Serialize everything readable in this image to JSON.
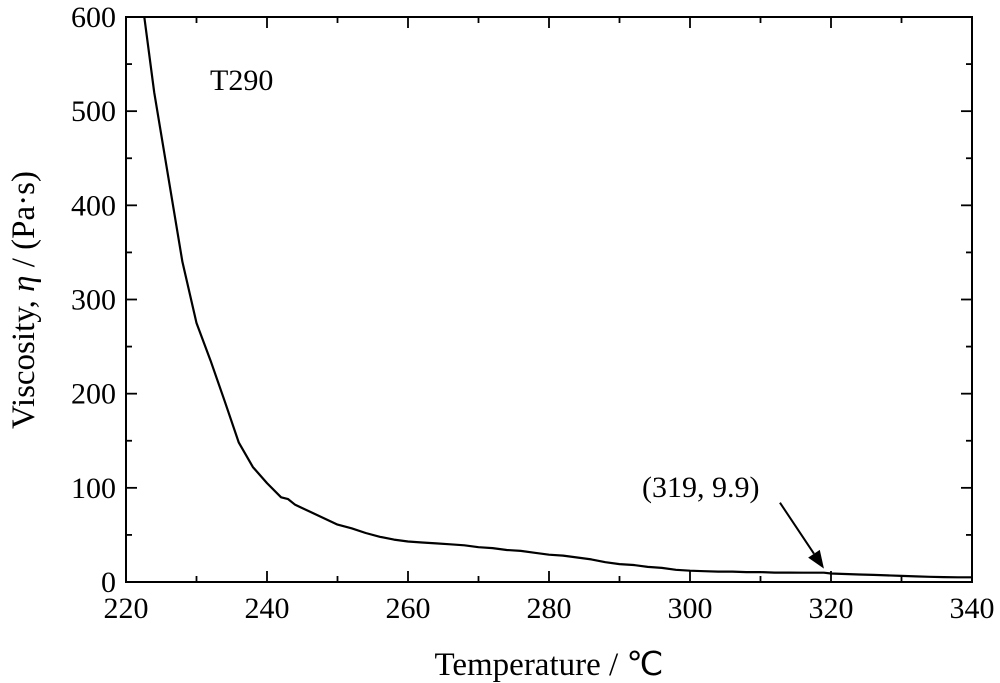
{
  "chart_data": {
    "type": "line",
    "xlabel": "Temperature / ℃",
    "ylabel_prefix": "Viscosity, ",
    "ylabel_symbol": "η",
    "ylabel_suffix": " / (Pa·s)",
    "xlim": [
      220,
      340
    ],
    "ylim": [
      0,
      600
    ],
    "x_ticks": [
      220,
      240,
      260,
      280,
      300,
      320,
      340
    ],
    "y_ticks": [
      0,
      100,
      200,
      300,
      400,
      500,
      600
    ],
    "grid": false,
    "legend": "none",
    "text_label": "T290",
    "annotation": {
      "text": "(319, 9.9)",
      "x": 319,
      "y": 9.9
    },
    "series": [
      {
        "color": "#000000",
        "x": [
          222.6,
          224,
          226,
          228,
          230,
          232,
          234,
          236,
          238,
          240,
          242,
          243,
          244,
          246,
          248,
          250,
          252,
          254,
          256,
          258,
          260,
          262,
          264,
          266,
          268,
          270,
          272,
          274,
          276,
          278,
          280,
          282,
          284,
          286,
          288,
          290,
          292,
          294,
          296,
          298,
          300,
          302,
          304,
          306,
          308,
          310,
          312,
          314,
          316,
          318,
          319,
          320,
          322,
          324,
          326,
          328,
          330,
          332,
          334,
          336,
          338,
          340
        ],
        "y": [
          600,
          520,
          430,
          340,
          275,
          235,
          192,
          148,
          122,
          105,
          90,
          88,
          82,
          75,
          68,
          61,
          57,
          52,
          48,
          45,
          43,
          42,
          41,
          40,
          39,
          37,
          36,
          34,
          33,
          31,
          29,
          28,
          26,
          24,
          21,
          19,
          18,
          16,
          15,
          13,
          12,
          11.5,
          11,
          11,
          10.5,
          10.5,
          10,
          10,
          9.9,
          9.9,
          9.9,
          9,
          8.5,
          8,
          7.5,
          7,
          6.5,
          6,
          5.5,
          5.2,
          5,
          5
        ]
      }
    ]
  }
}
